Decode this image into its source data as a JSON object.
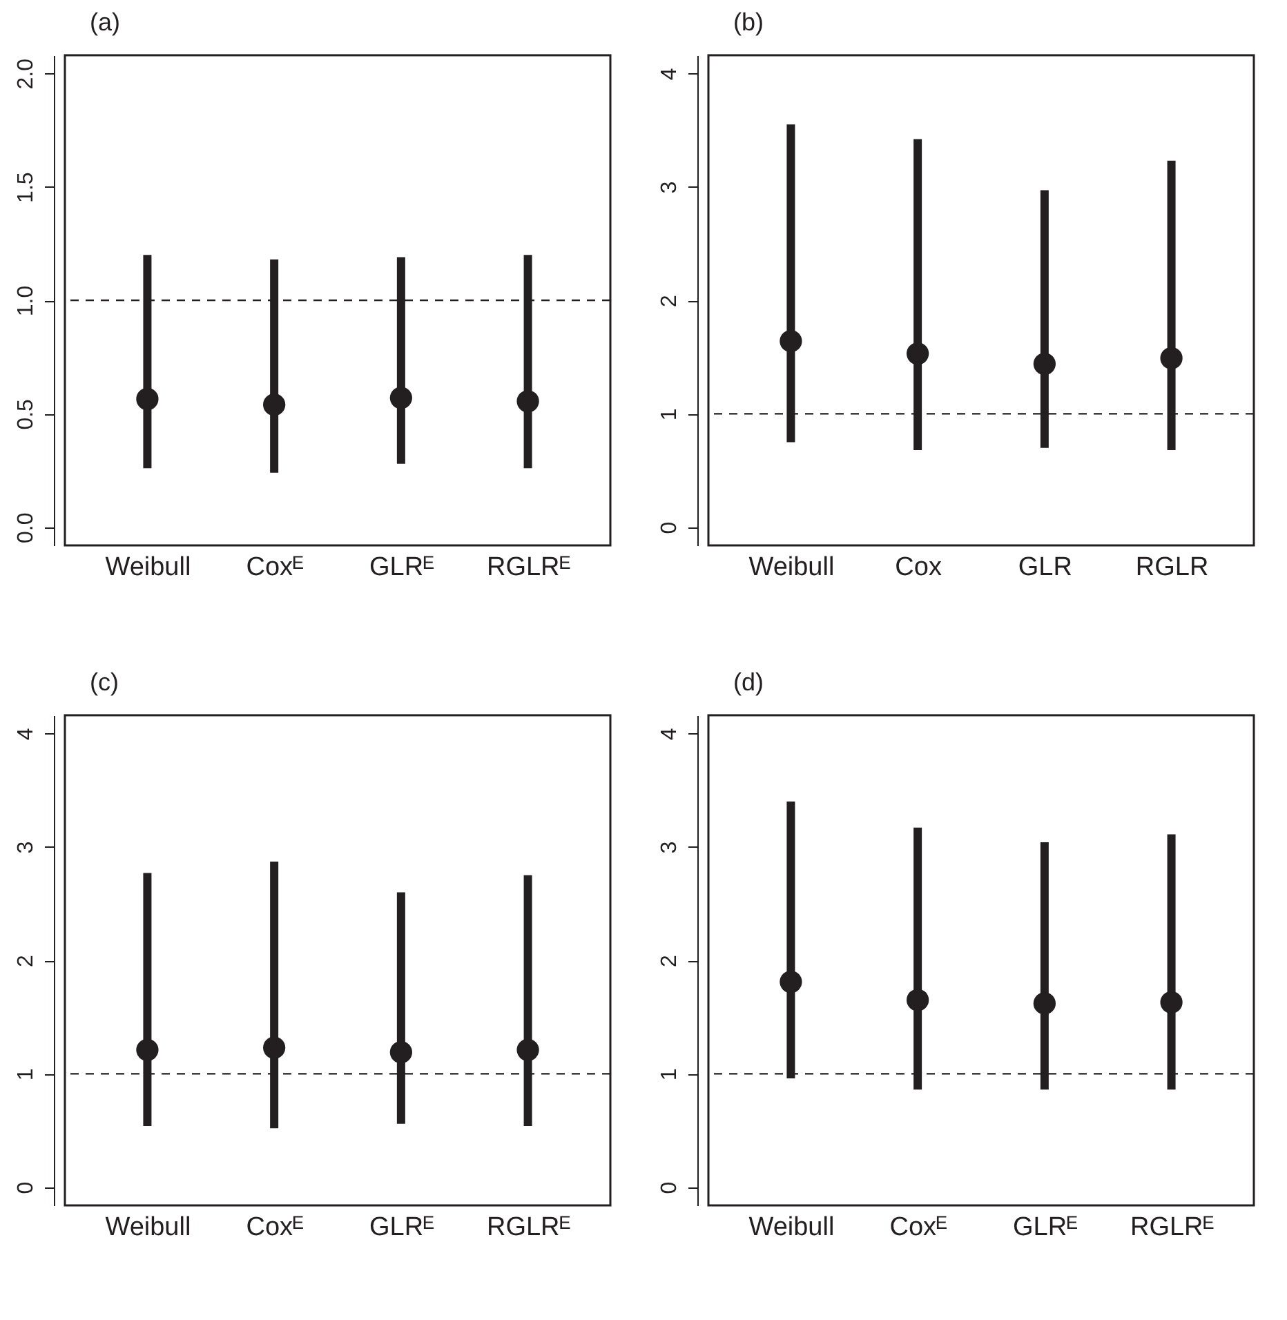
{
  "chart_data": [
    {
      "type": "scatter",
      "title": "(a)",
      "categories": [
        "Weibull",
        "Coxᴱ",
        "GLRᴱ",
        "RGLRᴱ"
      ],
      "values": [
        0.565,
        0.54,
        0.57,
        0.555
      ],
      "errors": [
        [
          0.26,
          1.2
        ],
        [
          0.24,
          1.18
        ],
        [
          0.28,
          1.19
        ],
        [
          0.26,
          1.2
        ]
      ],
      "color": "#231f20",
      "marker": "circle",
      "ylim": [
        -0.08,
        2.08
      ],
      "yticks": [
        {
          "value": 0,
          "label": "0.0"
        },
        {
          "value": 0.5,
          "label": "0.5"
        },
        {
          "value": 1,
          "label": "1.0"
        },
        {
          "value": 1.5,
          "label": "1.5"
        },
        {
          "value": 2,
          "label": "2.0"
        }
      ],
      "ref_lines": [
        {
          "axis": "y",
          "value": 1,
          "line_style": "dashed"
        }
      ],
      "grid": false
    },
    {
      "type": "scatter",
      "title": "(b)",
      "categories": [
        "Weibull",
        "Cox",
        "GLR",
        "RGLR"
      ],
      "values": [
        1.64,
        1.53,
        1.44,
        1.49
      ],
      "errors": [
        [
          0.75,
          3.55
        ],
        [
          0.68,
          3.42
        ],
        [
          0.7,
          2.97
        ],
        [
          0.68,
          3.23
        ]
      ],
      "color": "#231f20",
      "marker": "circle",
      "ylim": [
        -0.16,
        4.16
      ],
      "yticks": [
        0,
        1,
        2,
        3,
        4
      ],
      "ref_lines": [
        {
          "axis": "y",
          "value": 1,
          "line_style": "dashed"
        }
      ],
      "grid": false
    },
    {
      "type": "scatter",
      "title": "(c)",
      "categories": [
        "Weibull",
        "Coxᴱ",
        "GLRᴱ",
        "RGLRᴱ"
      ],
      "values": [
        1.21,
        1.23,
        1.19,
        1.21
      ],
      "errors": [
        [
          0.54,
          2.77
        ],
        [
          0.52,
          2.87
        ],
        [
          0.56,
          2.6
        ],
        [
          0.54,
          2.75
        ]
      ],
      "color": "#231f20",
      "marker": "circle",
      "ylim": [
        -0.16,
        4.16
      ],
      "yticks": [
        0,
        1,
        2,
        3,
        4
      ],
      "ref_lines": [
        {
          "axis": "y",
          "value": 1,
          "line_style": "dashed"
        }
      ],
      "grid": false
    },
    {
      "type": "scatter",
      "title": "(d)",
      "categories": [
        "Weibull",
        "Coxᴱ",
        "GLRᴱ",
        "RGLRᴱ"
      ],
      "values": [
        1.81,
        1.65,
        1.62,
        1.63
      ],
      "errors": [
        [
          0.96,
          3.4
        ],
        [
          0.86,
          3.17
        ],
        [
          0.86,
          3.04
        ],
        [
          0.86,
          3.11
        ]
      ],
      "color": "#231f20",
      "marker": "circle",
      "ylim": [
        -0.16,
        4.16
      ],
      "yticks": [
        0,
        1,
        2,
        3,
        4
      ],
      "ref_lines": [
        {
          "axis": "y",
          "value": 1,
          "line_style": "dashed"
        }
      ],
      "grid": false
    }
  ]
}
